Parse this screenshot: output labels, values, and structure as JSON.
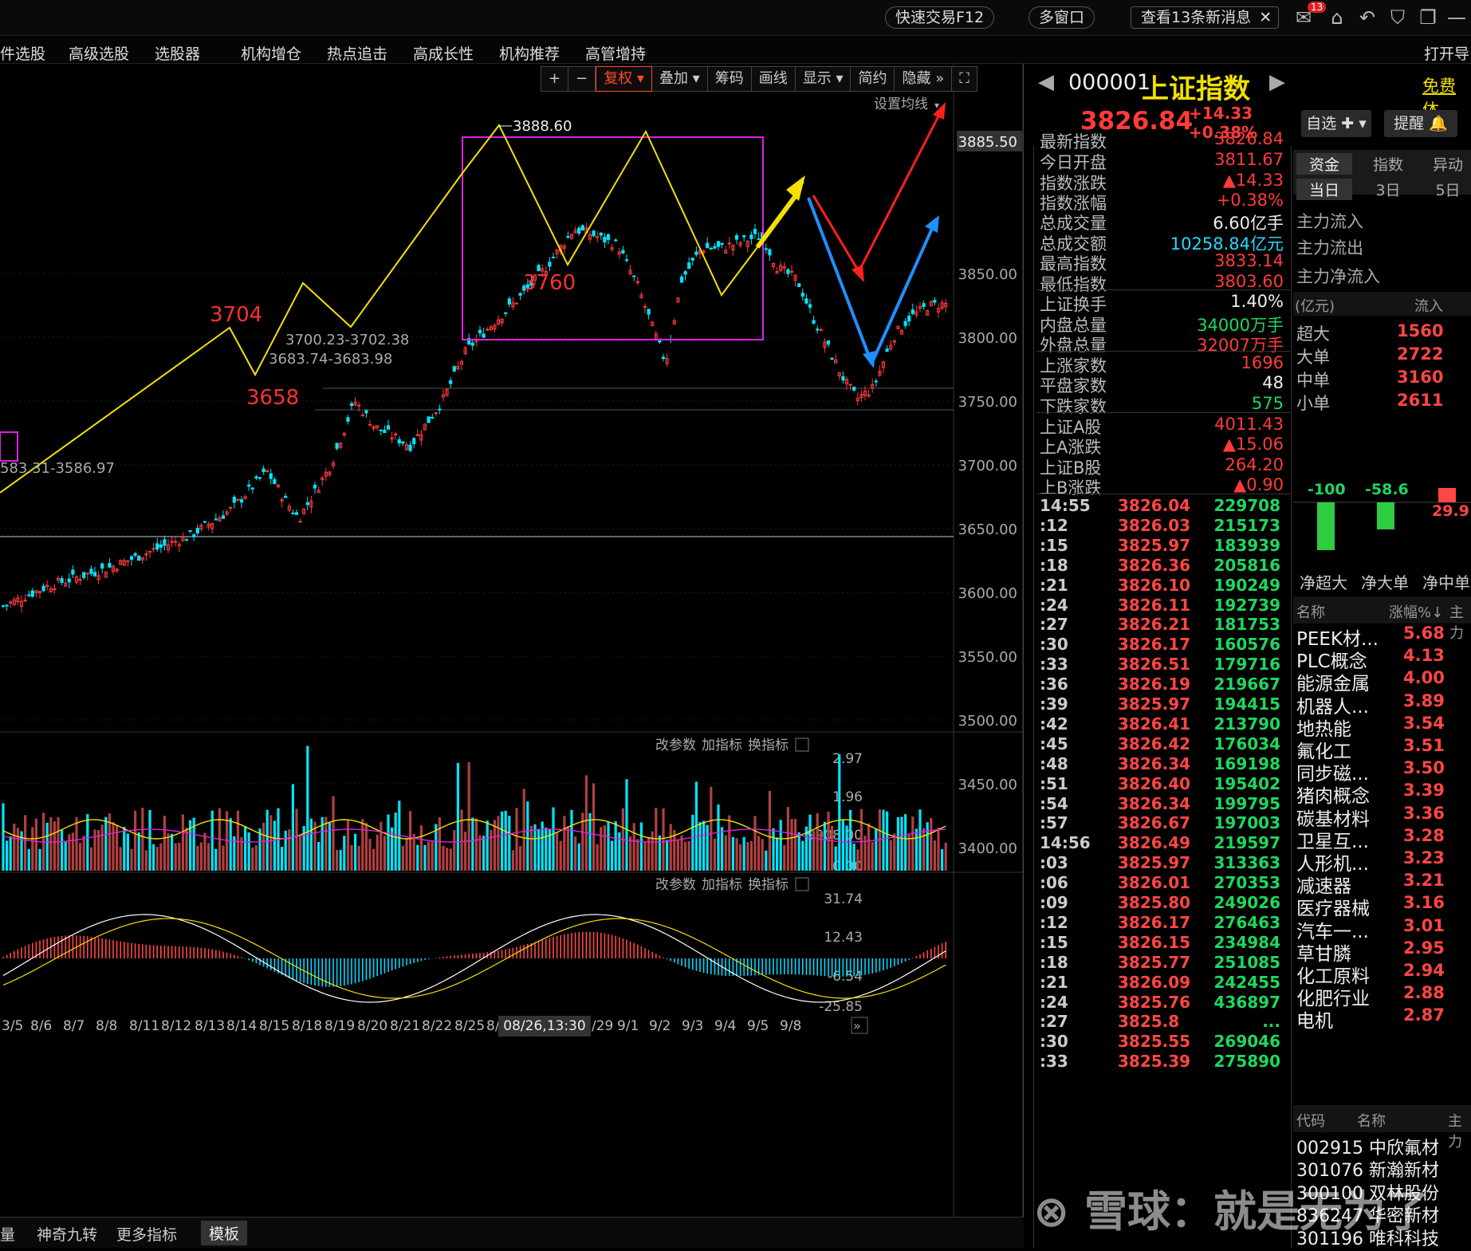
{
  "topbar": {
    "quick_trade": "快速交易F12",
    "multi_window": "多窗口",
    "news": "查看13条新消息",
    "mail_badge": "13"
  },
  "menu": [
    "件选股",
    "高级选股",
    "选股器",
    "机构增仓",
    "热点追击",
    "高成长性",
    "机构推荐",
    "高管增持",
    "打开导"
  ],
  "toolbar": [
    "+",
    "−",
    "复权",
    "叠加",
    "筹码",
    "画线",
    "显示",
    "简约",
    "隐藏"
  ],
  "ma_setting": "设置均线",
  "price_axis": [
    "3885.50",
    "3850.00",
    "3800.00",
    "3750.00",
    "3700.00",
    "3650.00",
    "3600.00",
    "3550.00",
    "3500.00",
    "3450.00",
    "3400.00"
  ],
  "annotations": {
    "high": "3888.60",
    "a3704": "3704",
    "a3658": "3658",
    "a3760": "3760",
    "range1": "3700.23-3702.38",
    "range2": "3683.74-3683.98",
    "range3": "583.31-3586.97"
  },
  "indicator_btns": [
    "改参数",
    "加指标",
    "换指标"
  ],
  "vol_axis": [
    "2.97",
    "1.96",
    "9908.00",
    "0.00"
  ],
  "macd_axis": [
    "31.74",
    "12.43",
    "-6.54",
    "-25.85"
  ],
  "dates": [
    "3/5",
    "8/6",
    "8/7",
    "8/8",
    "8/11",
    "8/12",
    "8/13",
    "8/14",
    "8/15",
    "8/18",
    "8/19",
    "8/20",
    "8/21",
    "8/22",
    "8/25",
    "8/",
    "/29",
    "9/1",
    "9/2",
    "9/3",
    "9/4",
    "9/5",
    "9/8"
  ],
  "cursor_date": "08/26,13:30",
  "bottom_tabs": [
    "量",
    "神奇九转",
    "更多指标",
    "模板"
  ],
  "quote": {
    "code": "000001",
    "name": "上证指数",
    "price": "3826.84",
    "change": "+14.33",
    "pct": "+0.38%",
    "free": "免费体",
    "btn_watch": "自选",
    "btn_alert": "提醒"
  },
  "quote_rows": [
    {
      "label": "最新指数",
      "value": "3826.84",
      "color": "red"
    },
    {
      "label": "今日开盘",
      "value": "3811.67",
      "color": "red"
    },
    {
      "label": "指数涨跌",
      "value": "▲14.33",
      "color": "red"
    },
    {
      "label": "指数涨幅",
      "value": "+0.38%",
      "color": "red"
    },
    {
      "label": "总成交量",
      "value": "6.60亿手",
      "color": "white"
    },
    {
      "label": "总成交额",
      "value": "10258.84亿元",
      "color": "cyan"
    },
    {
      "label": "最高指数",
      "value": "3833.14",
      "color": "red"
    },
    {
      "label": "最低指数",
      "value": "3803.60",
      "color": "red"
    },
    {
      "label": "上证换手",
      "value": "1.40%",
      "color": "white"
    },
    {
      "label": "内盘总量",
      "value": "34000万手",
      "color": "green"
    },
    {
      "label": "外盘总量",
      "value": "32007万手",
      "color": "red"
    },
    {
      "label": "上涨家数",
      "value": "1696",
      "color": "red"
    },
    {
      "label": "平盘家数",
      "value": "48",
      "color": "white"
    },
    {
      "label": "下跌家数",
      "value": "575",
      "color": "green"
    },
    {
      "label": "上证A股",
      "value": "4011.43",
      "color": "red"
    },
    {
      "label": "上A涨跌",
      "value": "▲15.06",
      "color": "red"
    },
    {
      "label": "上证B股",
      "value": "264.20",
      "color": "red"
    },
    {
      "label": "上B涨跌",
      "value": "▲0.90",
      "color": "red"
    }
  ],
  "ticks": [
    {
      "t": "14:55",
      "p": "3826.04",
      "v": "229708"
    },
    {
      "t": ":12",
      "p": "3826.03",
      "v": "215173"
    },
    {
      "t": ":15",
      "p": "3825.97",
      "v": "183939"
    },
    {
      "t": ":18",
      "p": "3826.36",
      "v": "205816"
    },
    {
      "t": ":21",
      "p": "3826.10",
      "v": "190249"
    },
    {
      "t": ":24",
      "p": "3826.11",
      "v": "192739"
    },
    {
      "t": ":27",
      "p": "3826.21",
      "v": "181753"
    },
    {
      "t": ":30",
      "p": "3826.17",
      "v": "160576"
    },
    {
      "t": ":33",
      "p": "3826.51",
      "v": "179716"
    },
    {
      "t": ":36",
      "p": "3826.19",
      "v": "219667"
    },
    {
      "t": ":39",
      "p": "3825.97",
      "v": "194415"
    },
    {
      "t": ":42",
      "p": "3826.41",
      "v": "213790"
    },
    {
      "t": ":45",
      "p": "3826.42",
      "v": "176034"
    },
    {
      "t": ":48",
      "p": "3826.34",
      "v": "169198"
    },
    {
      "t": ":51",
      "p": "3826.40",
      "v": "195402"
    },
    {
      "t": ":54",
      "p": "3826.34",
      "v": "199795"
    },
    {
      "t": ":57",
      "p": "3826.67",
      "v": "197003"
    },
    {
      "t": "14:56",
      "p": "3826.49",
      "v": "219597"
    },
    {
      "t": ":03",
      "p": "3825.97",
      "v": "313363"
    },
    {
      "t": ":06",
      "p": "3826.01",
      "v": "270353"
    },
    {
      "t": ":09",
      "p": "3825.80",
      "v": "249026"
    },
    {
      "t": ":12",
      "p": "3826.17",
      "v": "276463"
    },
    {
      "t": ":15",
      "p": "3826.15",
      "v": "234984"
    },
    {
      "t": ":18",
      "p": "3825.77",
      "v": "251085"
    },
    {
      "t": ":21",
      "p": "3826.09",
      "v": "242455"
    },
    {
      "t": ":24",
      "p": "3825.76",
      "v": "436897"
    },
    {
      "t": ":27",
      "p": "3825.8",
      "v": "..."
    },
    {
      "t": ":30",
      "p": "3825.55",
      "v": "269046"
    },
    {
      "t": ":33",
      "p": "3825.39",
      "v": "275890"
    }
  ],
  "fund_tabs": [
    "资金",
    "指数",
    "异动"
  ],
  "fund_subtabs": [
    "当日",
    "3日",
    "5日"
  ],
  "fund_labels": [
    "主力流入",
    "主力流出",
    "主力净流入"
  ],
  "flow_header": {
    "unit": "(亿元)",
    "col": "流入"
  },
  "flows": [
    {
      "label": "超大",
      "value": "1560"
    },
    {
      "label": "大单",
      "value": "2722"
    },
    {
      "label": "中单",
      "value": "3160"
    },
    {
      "label": "小单",
      "value": "2611"
    }
  ],
  "net_flow": {
    "values": [
      "-100",
      "-58.6",
      "29.9"
    ],
    "labels": [
      "净超大",
      "净大单",
      "净中单"
    ]
  },
  "sector_header": {
    "name": "名称",
    "pct": "涨幅%↓",
    "extra": "主力"
  },
  "sectors": [
    {
      "n": "PEEK材...",
      "c": "5.68"
    },
    {
      "n": "PLC概念",
      "c": "4.13"
    },
    {
      "n": "能源金属",
      "c": "4.00"
    },
    {
      "n": "机器人...",
      "c": "3.89"
    },
    {
      "n": "地热能",
      "c": "3.54"
    },
    {
      "n": "氟化工",
      "c": "3.51"
    },
    {
      "n": "同步磁...",
      "c": "3.50"
    },
    {
      "n": "猪肉概念",
      "c": "3.39"
    },
    {
      "n": "碳基材料",
      "c": "3.36"
    },
    {
      "n": "卫星互...",
      "c": "3.28"
    },
    {
      "n": "人形机...",
      "c": "3.23"
    },
    {
      "n": "减速器",
      "c": "3.21"
    },
    {
      "n": "医疗器械",
      "c": "3.16"
    },
    {
      "n": "汽车一...",
      "c": "3.01"
    },
    {
      "n": "草甘膦",
      "c": "2.95"
    },
    {
      "n": "化工原料",
      "c": "2.94"
    },
    {
      "n": "化肥行业",
      "c": "2.88"
    },
    {
      "n": "电机",
      "c": "2.87"
    }
  ],
  "stock_header": {
    "code": "代码",
    "name": "名称",
    "extra": "主力"
  },
  "stocks": [
    "002915 中欣氟材",
    "301076 新瀚新材",
    "300100 双林股份",
    "836247 华密新材",
    "301196 唯科科技"
  ],
  "watermark": "雪球：就是无为了"
}
